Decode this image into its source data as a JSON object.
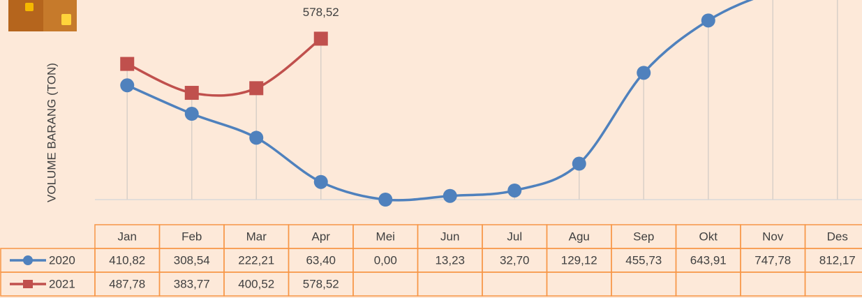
{
  "chart_data": {
    "type": "line",
    "y_axis_label": "VOLUME BARANG (TON)",
    "categories": [
      "Jan",
      "Feb",
      "Mar",
      "Apr",
      "Mei",
      "Jun",
      "Jul",
      "Agu",
      "Sep",
      "Okt",
      "Nov",
      "Des"
    ],
    "series": [
      {
        "name": "2020",
        "color": "#4f81bd",
        "marker": "circle",
        "values": [
          410.82,
          308.54,
          222.21,
          63.4,
          0.0,
          13.23,
          32.7,
          129.12,
          455.73,
          643.91,
          747.78,
          812.17
        ],
        "value_labels": [
          "410,82",
          "308,54",
          "222,21",
          "63,40",
          "0,00",
          "13,23",
          "32,70",
          "129,12",
          "455,73",
          "643,91",
          "747,78",
          "812,17"
        ]
      },
      {
        "name": "2021",
        "color": "#c0504d",
        "marker": "square",
        "values": [
          487.78,
          383.77,
          400.52,
          578.52,
          null,
          null,
          null,
          null,
          null,
          null,
          null,
          null
        ],
        "value_labels": [
          "487,78",
          "383,77",
          "400,52",
          "578,52",
          null,
          null,
          null,
          null,
          null,
          null,
          null,
          null
        ]
      }
    ],
    "ylim": [
      0,
      700
    ]
  }
}
